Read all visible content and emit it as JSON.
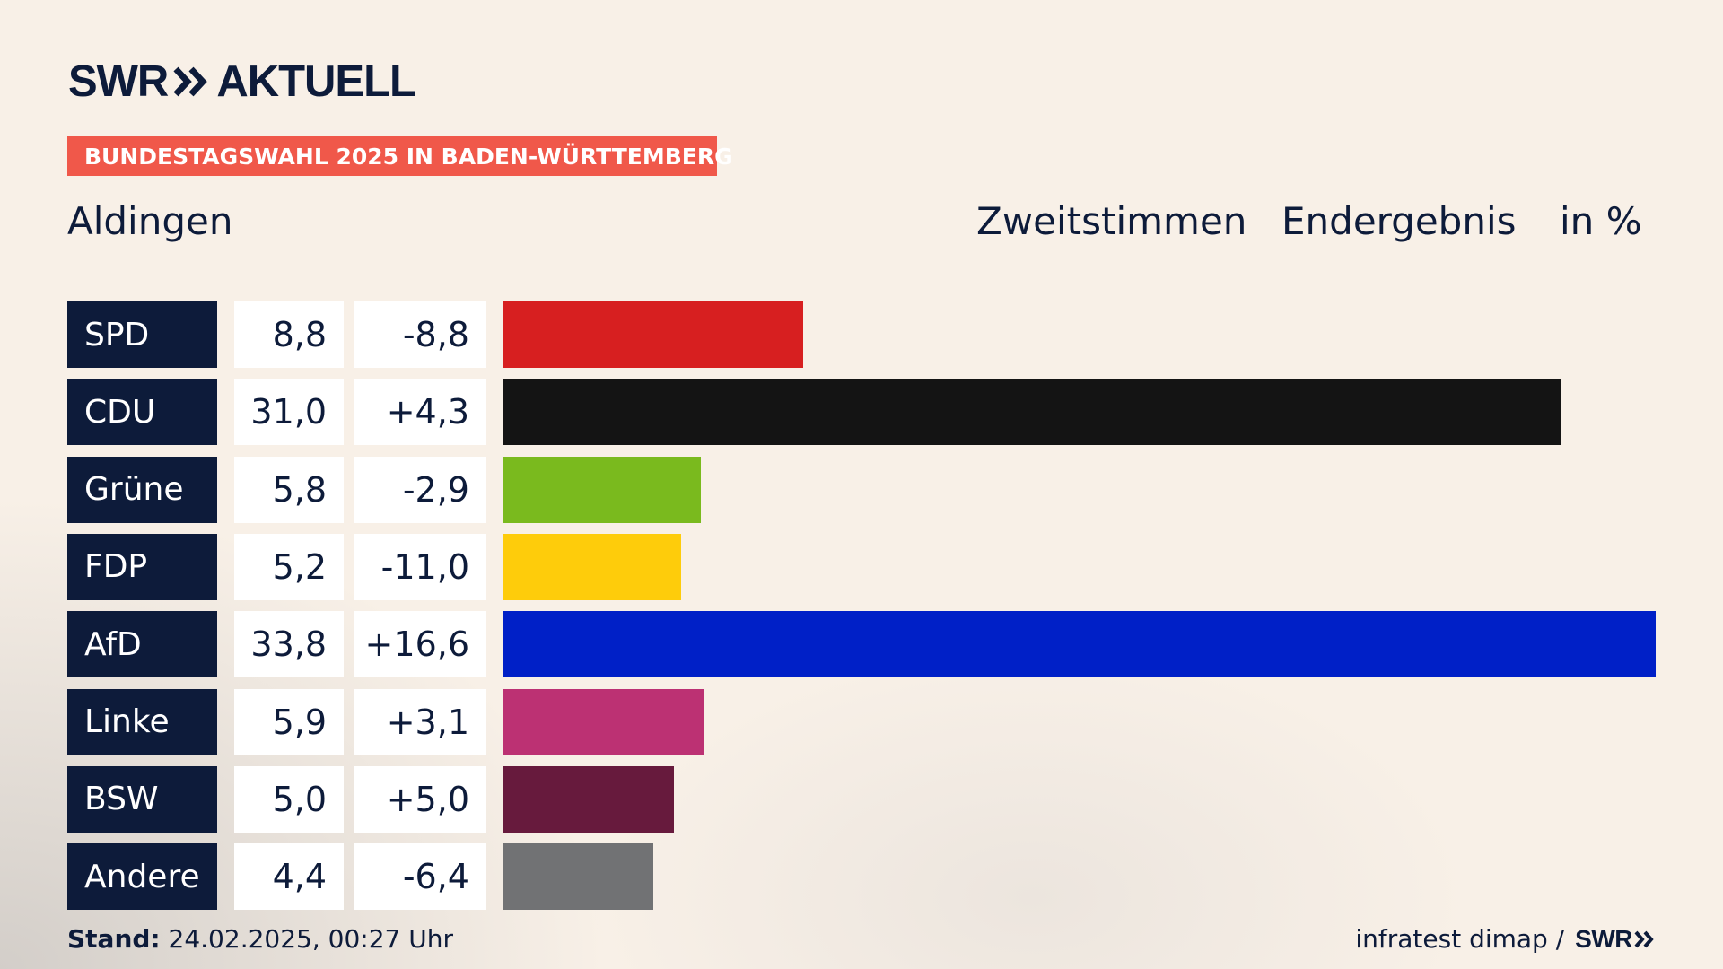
{
  "header": {
    "logo_left": "SWR",
    "logo_right": "AKTUELL",
    "badge": "BUNDESTAGSWAHL 2025 IN BADEN-WÜRTTEMBERG",
    "place": "Aldingen",
    "col1": "Zweitstimmen",
    "col2": "Endergebnis",
    "col3": "in %"
  },
  "chart_data": {
    "type": "bar",
    "orientation": "horizontal",
    "title": "Bundestagswahl 2025 in Baden-Württemberg – Aldingen – Zweitstimmen Endergebnis in %",
    "categories": [
      "SPD",
      "CDU",
      "Grüne",
      "FDP",
      "AfD",
      "Linke",
      "BSW",
      "Andere"
    ],
    "values": [
      8.8,
      31.0,
      5.8,
      5.2,
      33.8,
      5.9,
      5.0,
      4.4
    ],
    "value_labels": [
      "8,8",
      "31,0",
      "5,8",
      "5,2",
      "33,8",
      "5,9",
      "5,0",
      "4,4"
    ],
    "diff_labels": [
      "-8,8",
      "+4,3",
      "-2,9",
      "-11,0",
      "+16,6",
      "+3,1",
      "+5,0",
      "-6,4"
    ],
    "colors": [
      "#d71f20",
      "#141414",
      "#7aba1e",
      "#fecc0b",
      "#0020c7",
      "#bc3173",
      "#671a3d",
      "#717274"
    ],
    "xlim": [
      0,
      33.8
    ],
    "unit": "%"
  },
  "footer": {
    "stand_label": "Stand:",
    "stand_value": "24.02.2025, 00:27 Uhr",
    "source": "infratest dimap /",
    "source_brand": "SWR"
  }
}
